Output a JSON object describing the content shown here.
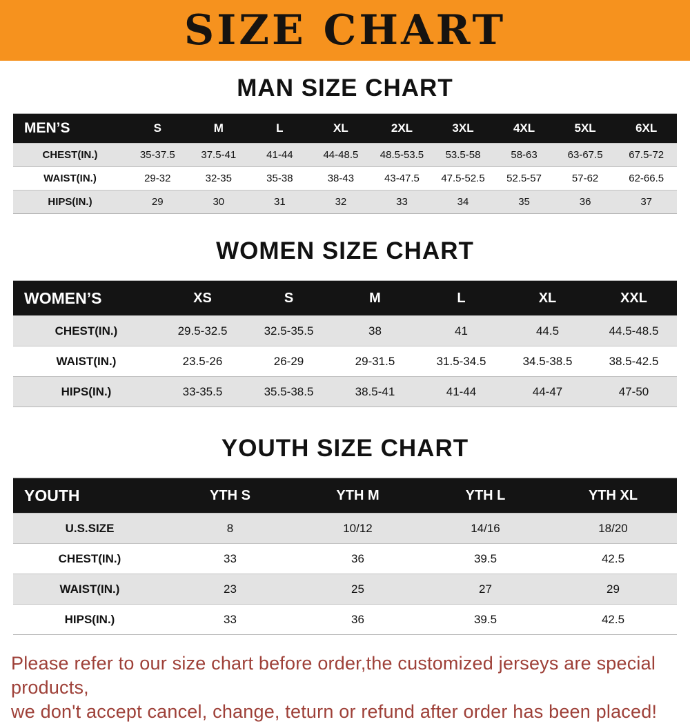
{
  "banner": {
    "title": "SIZE CHART",
    "bg_color": "#f6921e",
    "text_color": "#161310"
  },
  "sections": [
    {
      "id": "men",
      "title": "MAN SIZE CHART",
      "table": {
        "header": [
          "MEN’S",
          "S",
          "M",
          "L",
          "XL",
          "2XL",
          "3XL",
          "4XL",
          "5XL",
          "6XL"
        ],
        "rows": [
          {
            "label": "CHEST(IN.)",
            "values": [
              "35-37.5",
              "37.5-41",
              "41-44",
              "44-48.5",
              "48.5-53.5",
              "53.5-58",
              "58-63",
              "63-67.5",
              "67.5-72"
            ]
          },
          {
            "label": "WAIST(IN.)",
            "values": [
              "29-32",
              "32-35",
              "35-38",
              "38-43",
              "43-47.5",
              "47.5-52.5",
              "52.5-57",
              "57-62",
              "62-66.5"
            ]
          },
          {
            "label": "HIPS(IN.)",
            "values": [
              "29",
              "30",
              "31",
              "32",
              "33",
              "34",
              "35",
              "36",
              "37"
            ]
          }
        ]
      }
    },
    {
      "id": "women",
      "title": "WOMEN SIZE CHART",
      "table": {
        "header": [
          "WOMEN’S",
          "XS",
          "S",
          "M",
          "L",
          "XL",
          "XXL"
        ],
        "rows": [
          {
            "label": "CHEST(IN.)",
            "values": [
              "29.5-32.5",
              "32.5-35.5",
              "38",
              "41",
              "44.5",
              "44.5-48.5"
            ]
          },
          {
            "label": "WAIST(IN.)",
            "values": [
              "23.5-26",
              "26-29",
              "29-31.5",
              "31.5-34.5",
              "34.5-38.5",
              "38.5-42.5"
            ]
          },
          {
            "label": "HIPS(IN.)",
            "values": [
              "33-35.5",
              "35.5-38.5",
              "38.5-41",
              "41-44",
              "44-47",
              "47-50"
            ]
          }
        ]
      }
    },
    {
      "id": "youth",
      "title": "YOUTH SIZE CHART",
      "table": {
        "header": [
          "YOUTH",
          "YTH S",
          "YTH M",
          "YTH L",
          "YTH XL"
        ],
        "rows": [
          {
            "label": "U.S.SIZE",
            "values": [
              "8",
              "10/12",
              "14/16",
              "18/20"
            ]
          },
          {
            "label": "CHEST(IN.)",
            "values": [
              "33",
              "36",
              "39.5",
              "42.5"
            ]
          },
          {
            "label": "WAIST(IN.)",
            "values": [
              "23",
              "25",
              "27",
              "29"
            ]
          },
          {
            "label": "HIPS(IN.)",
            "values": [
              "33",
              "36",
              "39.5",
              "42.5"
            ]
          }
        ]
      }
    }
  ],
  "footer": {
    "lines": [
      "Please refer to our size chart before order,the customized jerseys are special products,",
      "we don't accept cancel, change, teturn or refund after order has been placed!"
    ],
    "color": "#9e4038"
  }
}
